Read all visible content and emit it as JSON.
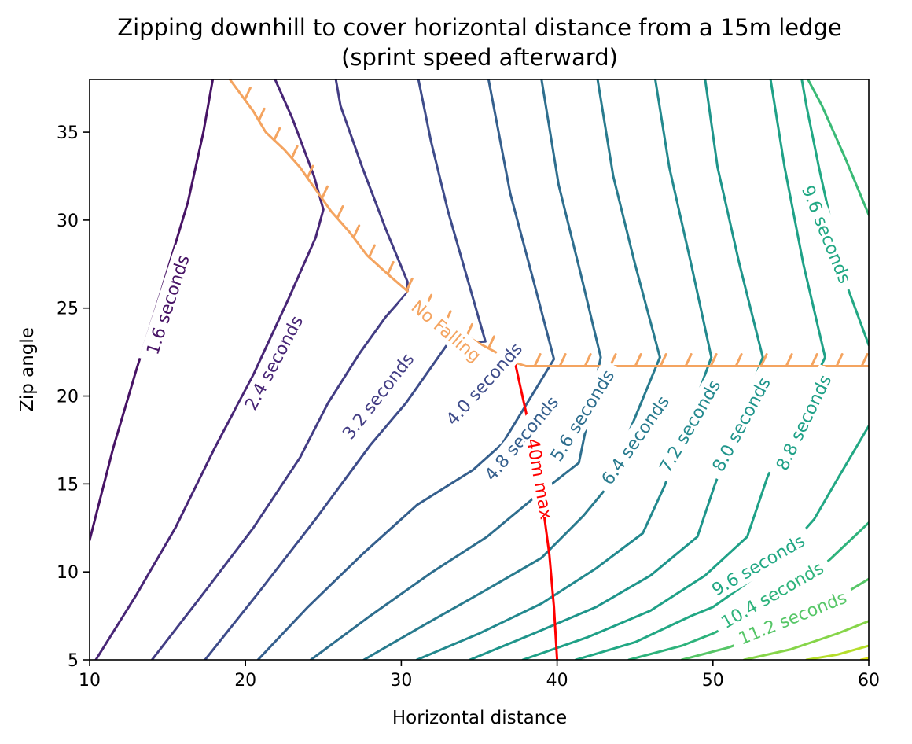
{
  "chart_data": {
    "type": "contour",
    "title": "Zipping downhill to cover horizontal distance from a 15m ledge",
    "subtitle": "(sprint speed afterward)",
    "xlabel": "Horizontal distance",
    "ylabel": "Zip angle",
    "xlim": [
      10,
      60
    ],
    "ylim": [
      5,
      38
    ],
    "xticks": [
      "10",
      "20",
      "30",
      "40",
      "50",
      "60"
    ],
    "yticks": [
      "5",
      "10",
      "15",
      "20",
      "25",
      "30",
      "35"
    ],
    "grid": false,
    "contours": [
      {
        "label": "1.6 seconds",
        "color": "#471365",
        "points": [
          [
            10,
            11.8
          ],
          [
            11.5,
            17
          ],
          [
            13,
            21.5
          ],
          [
            14.6,
            26
          ],
          [
            16.3,
            31
          ],
          [
            17.3,
            35
          ],
          [
            17.9,
            38
          ]
        ]
      },
      {
        "label": "2.4 seconds",
        "color": "#482676",
        "points": [
          [
            10.4,
            5
          ],
          [
            13,
            8.7
          ],
          [
            15.5,
            12.5
          ],
          [
            18,
            17
          ],
          [
            20.5,
            21.2
          ],
          [
            22.7,
            25.4
          ],
          [
            24.5,
            29
          ],
          [
            25,
            30.6
          ],
          [
            24.4,
            32.5
          ],
          [
            23,
            35.8
          ],
          [
            21.9,
            38
          ]
        ]
      },
      {
        "label": "3.2 seconds",
        "color": "#433d84",
        "points": [
          [
            14,
            5
          ],
          [
            17.5,
            9
          ],
          [
            20.5,
            12.5
          ],
          [
            23.5,
            16.5
          ],
          [
            25.3,
            19.6
          ],
          [
            27.3,
            22.4
          ],
          [
            29,
            24.5
          ],
          [
            30.4,
            25.9
          ],
          [
            30.4,
            26.5
          ],
          [
            29,
            29.5
          ],
          [
            27.5,
            33
          ],
          [
            26.1,
            36.5
          ],
          [
            25.8,
            38
          ]
        ]
      },
      {
        "label": "4.0 seconds",
        "color": "#3e4c8a",
        "points": [
          [
            17.4,
            5
          ],
          [
            21,
            9
          ],
          [
            24.5,
            13
          ],
          [
            28,
            17.2
          ],
          [
            30.3,
            19.6
          ],
          [
            33,
            23
          ],
          [
            35.4,
            23.1
          ],
          [
            34.3,
            26.5
          ],
          [
            33,
            30.5
          ],
          [
            31.9,
            34.5
          ],
          [
            31.1,
            38
          ]
        ]
      },
      {
        "label": "4.8 seconds",
        "color": "#355f8d",
        "points": [
          [
            20.8,
            5
          ],
          [
            24,
            8
          ],
          [
            27.5,
            11
          ],
          [
            31,
            13.8
          ],
          [
            34.6,
            15.8
          ],
          [
            36.5,
            17.3
          ],
          [
            39.8,
            22.1
          ],
          [
            38.5,
            26.5
          ],
          [
            37,
            31.5
          ],
          [
            35.6,
            38
          ]
        ]
      },
      {
        "label": "5.6 seconds",
        "color": "#2e6e8e",
        "points": [
          [
            24.2,
            5
          ],
          [
            28,
            7.5
          ],
          [
            32,
            10
          ],
          [
            35.5,
            12
          ],
          [
            38.5,
            14.2
          ],
          [
            41.4,
            16.2
          ],
          [
            42.8,
            22.2
          ],
          [
            41.5,
            27
          ],
          [
            40.1,
            32
          ],
          [
            39,
            38
          ]
        ]
      },
      {
        "label": "6.4 seconds",
        "color": "#297b8e",
        "points": [
          [
            27.6,
            5
          ],
          [
            31.5,
            7
          ],
          [
            35.5,
            9
          ],
          [
            39,
            10.8
          ],
          [
            41.7,
            13.2
          ],
          [
            43.1,
            14.7
          ],
          [
            46.6,
            22.2
          ],
          [
            45,
            27.5
          ],
          [
            43.6,
            32.5
          ],
          [
            42.6,
            38
          ]
        ]
      },
      {
        "label": "7.2 seconds",
        "color": "#23898e",
        "points": [
          [
            31,
            5
          ],
          [
            35,
            6.5
          ],
          [
            39,
            8.2
          ],
          [
            42.5,
            10.2
          ],
          [
            45.5,
            12.2
          ],
          [
            46.9,
            14.9
          ],
          [
            49.9,
            22.2
          ],
          [
            48.6,
            27.5
          ],
          [
            47.2,
            33
          ],
          [
            46.3,
            38
          ]
        ]
      },
      {
        "label": "8.0 seconds",
        "color": "#1f958b",
        "points": [
          [
            34.4,
            5
          ],
          [
            38.5,
            6.5
          ],
          [
            42.5,
            8
          ],
          [
            46,
            9.8
          ],
          [
            49,
            12
          ],
          [
            50.1,
            14.9
          ],
          [
            53.2,
            22.2
          ],
          [
            51.7,
            27.5
          ],
          [
            50.3,
            33
          ],
          [
            49.5,
            38
          ]
        ]
      },
      {
        "label": "8.8 seconds",
        "color": "#1fa187",
        "points": [
          [
            37.8,
            5
          ],
          [
            42,
            6.3
          ],
          [
            46,
            7.8
          ],
          [
            49.5,
            9.8
          ],
          [
            52.2,
            12
          ],
          [
            53.5,
            15.4
          ],
          [
            57.2,
            22.2
          ],
          [
            55.8,
            27.5
          ],
          [
            54.6,
            33
          ],
          [
            53.7,
            38
          ]
        ]
      },
      {
        "label": "9.6 seconds",
        "color": "#22a884",
        "points": [
          [
            41.2,
            5
          ],
          [
            45,
            6
          ],
          [
            48.6,
            7.5
          ],
          [
            50,
            8
          ],
          [
            54,
            10.5
          ],
          [
            56.5,
            13
          ],
          [
            58,
            15.3
          ],
          [
            60,
            18.3
          ]
        ]
      },
      {
        "label": "9.6 seconds",
        "color": "#22a884",
        "points": [
          [
            60,
            22.9
          ],
          [
            58.5,
            26.5
          ],
          [
            57.8,
            29
          ],
          [
            56.8,
            33
          ],
          [
            56,
            36.5
          ],
          [
            55.7,
            38
          ]
        ]
      },
      {
        "label": "10.4 seconds",
        "color": "#2eb37c",
        "points": [
          [
            44.6,
            5
          ],
          [
            48,
            5.8
          ],
          [
            50,
            6.5
          ],
          [
            54,
            8.2
          ],
          [
            57.5,
            10.7
          ],
          [
            60,
            12.8
          ]
        ]
      },
      {
        "label": "",
        "color": "#3aba76",
        "points": [
          [
            60,
            30.3
          ],
          [
            58.5,
            33.5
          ],
          [
            57,
            36.5
          ],
          [
            56.1,
            38
          ]
        ]
      },
      {
        "label": "11.2 seconds",
        "color": "#56c667",
        "points": [
          [
            48,
            5
          ],
          [
            51,
            5.7
          ],
          [
            54,
            6.7
          ],
          [
            57,
            8
          ],
          [
            60,
            9.6
          ]
        ]
      },
      {
        "label": "",
        "color": "#86d549",
        "points": [
          [
            52,
            5
          ],
          [
            55,
            5.6
          ],
          [
            58,
            6.5
          ],
          [
            60,
            7.2
          ]
        ]
      },
      {
        "label": "",
        "color": "#b5de2b",
        "points": [
          [
            56,
            5
          ],
          [
            58,
            5.3
          ],
          [
            60,
            5.8
          ]
        ]
      },
      {
        "label": "",
        "color": "#dde318",
        "points": [
          [
            59.5,
            5
          ],
          [
            60,
            5.1
          ]
        ]
      }
    ],
    "boundaries": [
      {
        "label": "No Falling",
        "color": "#f4a460",
        "hatched": true,
        "points": [
          [
            19,
            38
          ],
          [
            20.5,
            36.2
          ],
          [
            21.3,
            35
          ],
          [
            22.5,
            34
          ],
          [
            23.5,
            33
          ],
          [
            24.3,
            32
          ],
          [
            25.5,
            30.5
          ],
          [
            26.7,
            29.3
          ],
          [
            27.8,
            28
          ],
          [
            29.3,
            26.8
          ],
          [
            31,
            25.5
          ],
          [
            33,
            24
          ],
          [
            35,
            23
          ],
          [
            37.3,
            21.9
          ],
          [
            38,
            21.7
          ],
          [
            40,
            21.7
          ],
          [
            45,
            21.7
          ],
          [
            50,
            21.7
          ],
          [
            55,
            21.7
          ],
          [
            60,
            21.7
          ]
        ]
      },
      {
        "label": "40m max",
        "color": "#ff0000",
        "hatched": false,
        "points": [
          [
            37.3,
            21.9
          ],
          [
            38.1,
            18.7
          ],
          [
            38.9,
            15
          ],
          [
            39.5,
            11
          ],
          [
            39.8,
            8
          ],
          [
            40,
            5
          ]
        ]
      }
    ],
    "contour_labels": [
      {
        "text": "1.6 seconds",
        "x": 15.0,
        "y": 25.2,
        "rot": -72,
        "color": "#471365"
      },
      {
        "text": "2.4 seconds",
        "x": 21.8,
        "y": 21.9,
        "rot": -62,
        "color": "#482676"
      },
      {
        "text": "3.2 seconds",
        "x": 28.5,
        "y": 20.0,
        "rot": -52,
        "color": "#433d84"
      },
      {
        "text": "4.0 seconds",
        "x": 35.3,
        "y": 20.7,
        "rot": -48,
        "color": "#3e4c8a"
      },
      {
        "text": "4.8 seconds",
        "x": 37.7,
        "y": 17.6,
        "rot": -50,
        "color": "#355f8d"
      },
      {
        "text": "5.6 seconds",
        "x": 41.6,
        "y": 18.9,
        "rot": -58,
        "color": "#2e6e8e"
      },
      {
        "text": "6.4 seconds",
        "x": 45.0,
        "y": 17.5,
        "rot": -55,
        "color": "#297b8e"
      },
      {
        "text": "7.2 seconds",
        "x": 48.5,
        "y": 18.3,
        "rot": -60,
        "color": "#23898e"
      },
      {
        "text": "8.0 seconds",
        "x": 51.8,
        "y": 18.4,
        "rot": -62,
        "color": "#1f958b"
      },
      {
        "text": "8.8 seconds",
        "x": 55.8,
        "y": 18.5,
        "rot": -64,
        "color": "#1fa187"
      },
      {
        "text": "9.6 seconds",
        "x": 57.3,
        "y": 29.2,
        "rot": 68,
        "color": "#22a884"
      },
      {
        "text": "9.6 seconds",
        "x": 52.9,
        "y": 10.4,
        "rot": -30,
        "color": "#22a884"
      },
      {
        "text": "10.4 seconds",
        "x": 53.8,
        "y": 8.7,
        "rot": -30,
        "color": "#2eb37c"
      },
      {
        "text": "11.2 seconds",
        "x": 55.1,
        "y": 7.4,
        "rot": -22,
        "color": "#56c667"
      },
      {
        "text": "No Falling",
        "x": 32.9,
        "y": 23.7,
        "rot": 40,
        "color": "#f4a460"
      },
      {
        "text": "40m max",
        "x": 38.9,
        "y": 15.3,
        "rot": 80,
        "color": "#ff0000"
      }
    ]
  }
}
